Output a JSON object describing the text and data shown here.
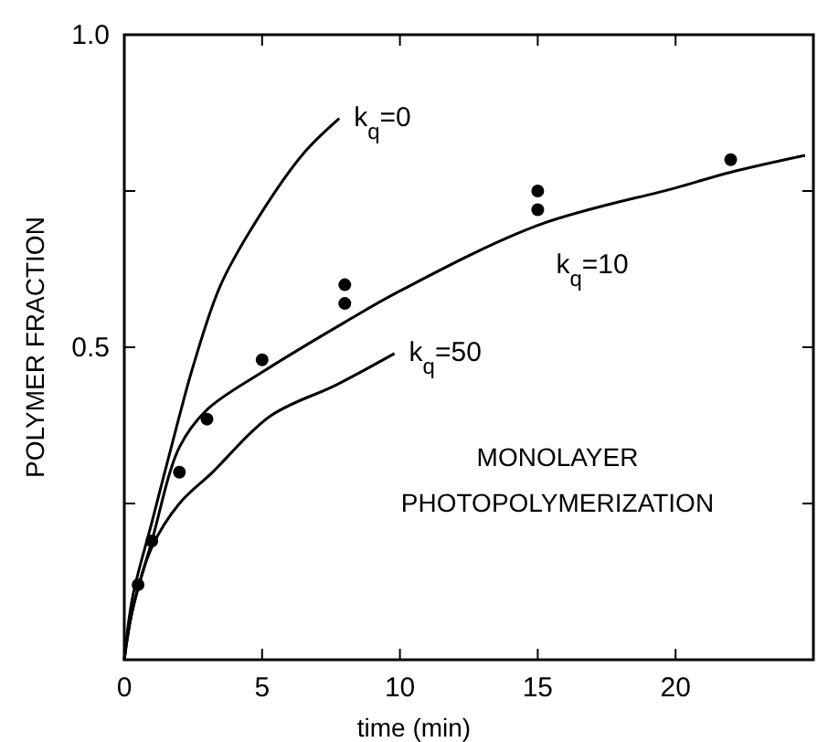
{
  "chart_data": {
    "type": "line",
    "xlabel": "time (min)",
    "ylabel": "POLYMER FRACTION",
    "xlim": [
      0,
      25
    ],
    "xticks": [
      0,
      5,
      10,
      15,
      20
    ],
    "ylim": [
      0,
      1.0
    ],
    "yticks": [
      {
        "value": 0.25,
        "label": null
      },
      {
        "value": 0.5,
        "label": "0.5"
      },
      {
        "value": 0.75,
        "label": null
      },
      {
        "value": 1.0,
        "label": "1.0"
      }
    ],
    "grid": false,
    "marker": "none",
    "line_style": "solid",
    "series": [
      {
        "name": "k$_{q}$=0",
        "color": "#000000",
        "x": [
          0,
          0.3,
          1,
          2,
          2.5,
          3.5,
          4.9,
          6.5,
          7.8
        ],
        "values": [
          0,
          0.1,
          0.22,
          0.39,
          0.47,
          0.6,
          0.71,
          0.81,
          0.866
        ]
      },
      {
        "name": "k$_{q}$=10",
        "color": "#000000",
        "x": [
          0,
          0.3,
          1,
          2,
          3,
          5,
          8,
          10,
          15,
          20,
          22,
          24.7
        ],
        "values": [
          0,
          0.08,
          0.19,
          0.34,
          0.4,
          0.46,
          0.54,
          0.59,
          0.695,
          0.755,
          0.78,
          0.807
        ]
      },
      {
        "name": "k$_{q}$=50",
        "color": "#000000",
        "x": [
          0,
          0.3,
          1,
          2,
          3.2,
          5.3,
          7.7,
          9.8
        ],
        "values": [
          0,
          0.08,
          0.18,
          0.25,
          0.3,
          0.39,
          0.44,
          0.49
        ]
      },
      {
        "type": "scatter",
        "marker": "circle",
        "color": "#000000",
        "x": [
          0.5,
          1,
          2,
          3,
          5,
          8,
          8,
          15,
          15,
          22
        ],
        "values": [
          0.12,
          0.19,
          0.3,
          0.385,
          0.48,
          0.57,
          0.6,
          0.72,
          0.75,
          0.8
        ]
      }
    ],
    "annotations": [
      "MONOLAYER\nPHOTOPOLYMERIZATION"
    ]
  }
}
